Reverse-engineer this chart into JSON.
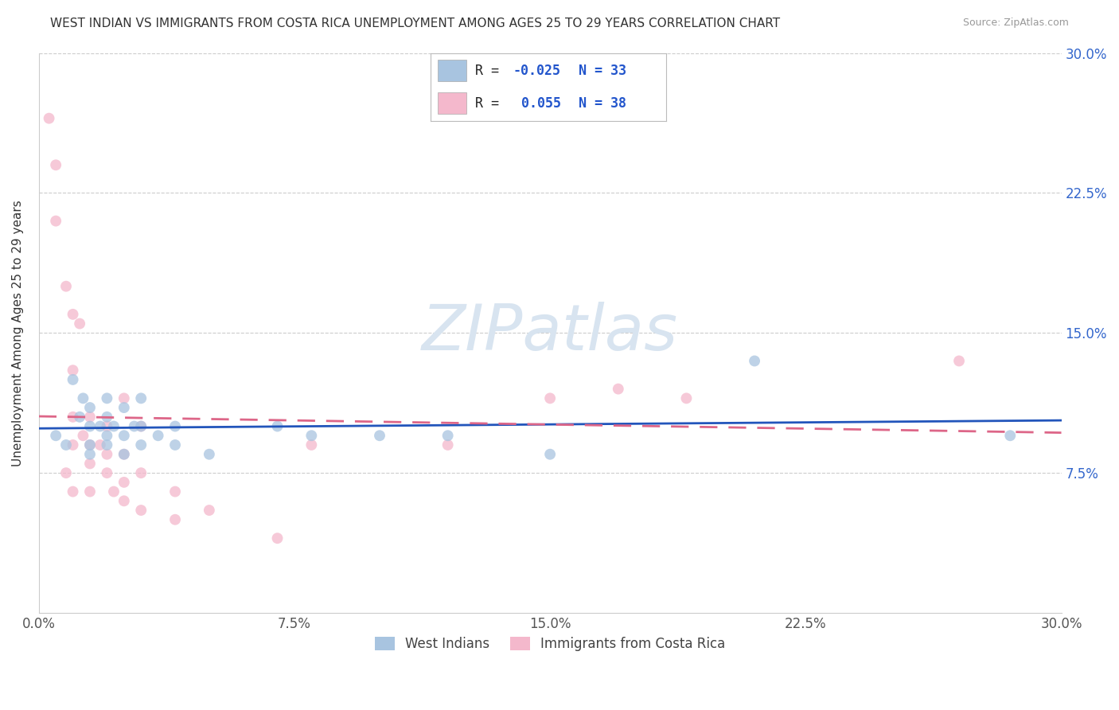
{
  "title": "WEST INDIAN VS IMMIGRANTS FROM COSTA RICA UNEMPLOYMENT AMONG AGES 25 TO 29 YEARS CORRELATION CHART",
  "source": "Source: ZipAtlas.com",
  "ylabel": "Unemployment Among Ages 25 to 29 years",
  "xlim": [
    0.0,
    0.3
  ],
  "ylim": [
    0.0,
    0.3
  ],
  "xtick_labels": [
    "0.0%",
    "7.5%",
    "15.0%",
    "22.5%",
    "30.0%"
  ],
  "xtick_vals": [
    0.0,
    0.075,
    0.15,
    0.225,
    0.3
  ],
  "ytick_vals": [
    0.075,
    0.15,
    0.225,
    0.3
  ],
  "ytick_labels_right": [
    "7.5%",
    "15.0%",
    "22.5%",
    "30.0%"
  ],
  "blue_color": "#a8c4e0",
  "pink_color": "#f4b8cc",
  "blue_line_color": "#2255bb",
  "pink_line_color": "#dd6688",
  "watermark": "ZIPatlas",
  "watermark_color": "#d8e4f0",
  "blue_scatter": [
    [
      0.005,
      0.095
    ],
    [
      0.008,
      0.09
    ],
    [
      0.01,
      0.125
    ],
    [
      0.012,
      0.105
    ],
    [
      0.013,
      0.115
    ],
    [
      0.015,
      0.11
    ],
    [
      0.015,
      0.1
    ],
    [
      0.015,
      0.09
    ],
    [
      0.015,
      0.085
    ],
    [
      0.018,
      0.1
    ],
    [
      0.02,
      0.115
    ],
    [
      0.02,
      0.105
    ],
    [
      0.02,
      0.095
    ],
    [
      0.02,
      0.09
    ],
    [
      0.022,
      0.1
    ],
    [
      0.025,
      0.11
    ],
    [
      0.025,
      0.095
    ],
    [
      0.025,
      0.085
    ],
    [
      0.028,
      0.1
    ],
    [
      0.03,
      0.115
    ],
    [
      0.03,
      0.1
    ],
    [
      0.03,
      0.09
    ],
    [
      0.035,
      0.095
    ],
    [
      0.04,
      0.1
    ],
    [
      0.04,
      0.09
    ],
    [
      0.05,
      0.085
    ],
    [
      0.07,
      0.1
    ],
    [
      0.08,
      0.095
    ],
    [
      0.1,
      0.095
    ],
    [
      0.12,
      0.095
    ],
    [
      0.15,
      0.085
    ],
    [
      0.21,
      0.135
    ],
    [
      0.285,
      0.095
    ]
  ],
  "pink_scatter": [
    [
      0.003,
      0.265
    ],
    [
      0.005,
      0.24
    ],
    [
      0.005,
      0.21
    ],
    [
      0.008,
      0.175
    ],
    [
      0.008,
      0.075
    ],
    [
      0.01,
      0.16
    ],
    [
      0.01,
      0.13
    ],
    [
      0.01,
      0.105
    ],
    [
      0.01,
      0.09
    ],
    [
      0.01,
      0.065
    ],
    [
      0.012,
      0.155
    ],
    [
      0.013,
      0.095
    ],
    [
      0.015,
      0.105
    ],
    [
      0.015,
      0.09
    ],
    [
      0.015,
      0.08
    ],
    [
      0.015,
      0.065
    ],
    [
      0.018,
      0.09
    ],
    [
      0.02,
      0.1
    ],
    [
      0.02,
      0.085
    ],
    [
      0.02,
      0.075
    ],
    [
      0.022,
      0.065
    ],
    [
      0.025,
      0.115
    ],
    [
      0.025,
      0.085
    ],
    [
      0.025,
      0.07
    ],
    [
      0.025,
      0.06
    ],
    [
      0.03,
      0.1
    ],
    [
      0.03,
      0.075
    ],
    [
      0.03,
      0.055
    ],
    [
      0.04,
      0.065
    ],
    [
      0.04,
      0.05
    ],
    [
      0.05,
      0.055
    ],
    [
      0.07,
      0.04
    ],
    [
      0.08,
      0.09
    ],
    [
      0.12,
      0.09
    ],
    [
      0.15,
      0.115
    ],
    [
      0.17,
      0.12
    ],
    [
      0.19,
      0.115
    ],
    [
      0.27,
      0.135
    ]
  ],
  "blue_scatter_sizes": 100,
  "pink_scatter_sizes": 100,
  "background_color": "#ffffff",
  "grid_color": "#cccccc",
  "legend_label_blue": "West Indians",
  "legend_label_pink": "Immigrants from Costa Rica",
  "legend_R1": "R = ",
  "legend_R1_val": "-0.025",
  "legend_N1": "N = 33",
  "legend_R2": "R =  ",
  "legend_R2_val": "0.055",
  "legend_N2": "N = 38"
}
